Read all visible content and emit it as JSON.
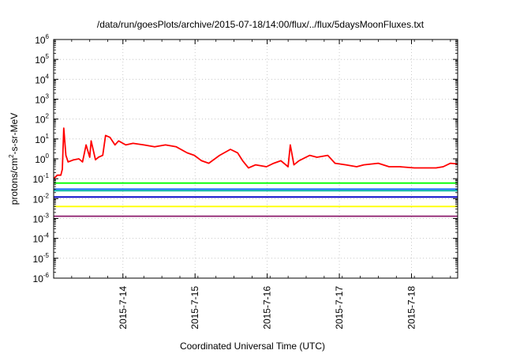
{
  "chart_data": {
    "type": "line",
    "title": "/data/run/goesPlots/archive/2015-07-18/14:00/flux/../flux/5daysMoonFluxes.txt",
    "xlabel": "Coordinated Universal Time (UTC)",
    "ylabel": {
      "prefix": "protons/cm",
      "sup": "2",
      "suffix": "-s-sr-MeV"
    },
    "log_scale_y": true,
    "grid": true,
    "x_range_days": [
      0,
      5.6
    ],
    "ylim_exponents": [
      -6,
      6
    ],
    "y_ticks": [
      {
        "base": "10",
        "exp": "-6"
      },
      {
        "base": "10",
        "exp": "-5"
      },
      {
        "base": "10",
        "exp": "-4"
      },
      {
        "base": "10",
        "exp": "-3"
      },
      {
        "base": "10",
        "exp": "-2"
      },
      {
        "base": "10",
        "exp": "-1"
      },
      {
        "base": "10",
        "exp": "0"
      },
      {
        "base": "10",
        "exp": "1"
      },
      {
        "base": "10",
        "exp": "2"
      },
      {
        "base": "10",
        "exp": "3"
      },
      {
        "base": "10",
        "exp": "4"
      },
      {
        "base": "10",
        "exp": "5"
      },
      {
        "base": "10",
        "exp": "6"
      }
    ],
    "x_ticks": [
      {
        "label": "2015-7-14",
        "t": 0.96
      },
      {
        "label": "2015-7-15",
        "t": 1.96
      },
      {
        "label": "2015-7-16",
        "t": 2.96
      },
      {
        "label": "2015-7-17",
        "t": 3.96
      },
      {
        "label": "2015-7-18",
        "t": 4.96
      }
    ],
    "series": [
      {
        "color": "#ff0000",
        "points": [
          [
            0.0,
            0.1
          ],
          [
            0.05,
            0.15
          ],
          [
            0.1,
            0.15
          ],
          [
            0.12,
            0.3
          ],
          [
            0.14,
            35.0
          ],
          [
            0.17,
            1.5
          ],
          [
            0.2,
            0.7
          ],
          [
            0.28,
            0.9
          ],
          [
            0.35,
            1.0
          ],
          [
            0.4,
            0.7
          ],
          [
            0.45,
            5.0
          ],
          [
            0.5,
            1.2
          ],
          [
            0.52,
            8.0
          ],
          [
            0.58,
            0.9
          ],
          [
            0.62,
            1.2
          ],
          [
            0.68,
            1.5
          ],
          [
            0.72,
            15.0
          ],
          [
            0.78,
            12.0
          ],
          [
            0.85,
            5.0
          ],
          [
            0.9,
            8.0
          ],
          [
            1.0,
            5.0
          ],
          [
            1.1,
            6.0
          ],
          [
            1.25,
            5.0
          ],
          [
            1.4,
            4.0
          ],
          [
            1.55,
            5.0
          ],
          [
            1.7,
            4.0
          ],
          [
            1.85,
            2.0
          ],
          [
            1.95,
            1.5
          ],
          [
            2.05,
            0.8
          ],
          [
            2.15,
            0.6
          ],
          [
            2.3,
            1.5
          ],
          [
            2.45,
            3.0
          ],
          [
            2.55,
            2.0
          ],
          [
            2.62,
            0.8
          ],
          [
            2.7,
            0.35
          ],
          [
            2.8,
            0.5
          ],
          [
            2.95,
            0.4
          ],
          [
            3.05,
            0.6
          ],
          [
            3.15,
            0.8
          ],
          [
            3.25,
            0.4
          ],
          [
            3.28,
            5.0
          ],
          [
            3.33,
            0.5
          ],
          [
            3.4,
            0.8
          ],
          [
            3.55,
            1.5
          ],
          [
            3.65,
            1.2
          ],
          [
            3.8,
            1.5
          ],
          [
            3.9,
            0.6
          ],
          [
            4.05,
            0.5
          ],
          [
            4.2,
            0.4
          ],
          [
            4.3,
            0.5
          ],
          [
            4.5,
            0.6
          ],
          [
            4.65,
            0.4
          ],
          [
            4.8,
            0.4
          ],
          [
            5.0,
            0.35
          ],
          [
            5.15,
            0.35
          ],
          [
            5.3,
            0.35
          ],
          [
            5.4,
            0.4
          ],
          [
            5.5,
            0.6
          ],
          [
            5.6,
            0.55
          ]
        ]
      },
      {
        "color": "#00ff00",
        "points": [
          [
            0.0,
            0.06
          ],
          [
            0.56,
            0.06
          ],
          [
            1.12,
            0.06
          ],
          [
            1.68,
            0.06
          ],
          [
            2.24,
            0.06
          ],
          [
            2.8,
            0.06
          ],
          [
            3.36,
            0.06
          ],
          [
            3.92,
            0.06
          ],
          [
            4.48,
            0.06
          ],
          [
            5.04,
            0.06
          ],
          [
            5.6,
            0.06
          ]
        ]
      },
      {
        "color": "#00b8a0",
        "points": [
          [
            0.0,
            0.025
          ],
          [
            0.56,
            0.025
          ],
          [
            1.12,
            0.025
          ],
          [
            1.68,
            0.025
          ],
          [
            2.24,
            0.025
          ],
          [
            2.8,
            0.025
          ],
          [
            3.36,
            0.025
          ],
          [
            3.92,
            0.025
          ],
          [
            4.48,
            0.025
          ],
          [
            5.04,
            0.025
          ],
          [
            5.6,
            0.025
          ]
        ]
      },
      {
        "color": "#1f6fff",
        "points": [
          [
            0.0,
            0.03
          ],
          [
            0.56,
            0.03
          ],
          [
            1.12,
            0.03
          ],
          [
            1.68,
            0.03
          ],
          [
            2.24,
            0.03
          ],
          [
            2.8,
            0.03
          ],
          [
            3.36,
            0.03
          ],
          [
            3.92,
            0.03
          ],
          [
            4.48,
            0.03
          ],
          [
            5.04,
            0.03
          ],
          [
            5.6,
            0.03
          ]
        ]
      },
      {
        "color": "#0000c8",
        "points": [
          [
            0.0,
            0.012
          ],
          [
            0.56,
            0.012
          ],
          [
            1.12,
            0.012
          ],
          [
            1.68,
            0.012
          ],
          [
            2.24,
            0.012
          ],
          [
            2.8,
            0.012
          ],
          [
            3.36,
            0.012
          ],
          [
            3.92,
            0.012
          ],
          [
            4.48,
            0.012
          ],
          [
            5.04,
            0.012
          ],
          [
            5.6,
            0.012
          ]
        ]
      },
      {
        "color": "#ffff00",
        "points": [
          [
            0.0,
            0.004
          ],
          [
            0.56,
            0.004
          ],
          [
            1.12,
            0.004
          ],
          [
            1.68,
            0.004
          ],
          [
            2.24,
            0.004
          ],
          [
            2.8,
            0.004
          ],
          [
            3.36,
            0.004
          ],
          [
            3.92,
            0.004
          ],
          [
            4.48,
            0.004
          ],
          [
            5.04,
            0.004
          ],
          [
            5.6,
            0.004
          ]
        ]
      },
      {
        "color": "#8b1a6b",
        "points": [
          [
            0.0,
            0.0013
          ],
          [
            0.56,
            0.0013
          ],
          [
            1.12,
            0.0013
          ],
          [
            1.68,
            0.0013
          ],
          [
            2.24,
            0.0013
          ],
          [
            2.8,
            0.0013
          ],
          [
            3.36,
            0.0013
          ],
          [
            3.92,
            0.0013
          ],
          [
            4.48,
            0.0013
          ],
          [
            5.04,
            0.0013
          ],
          [
            5.6,
            0.0013
          ]
        ]
      }
    ]
  }
}
